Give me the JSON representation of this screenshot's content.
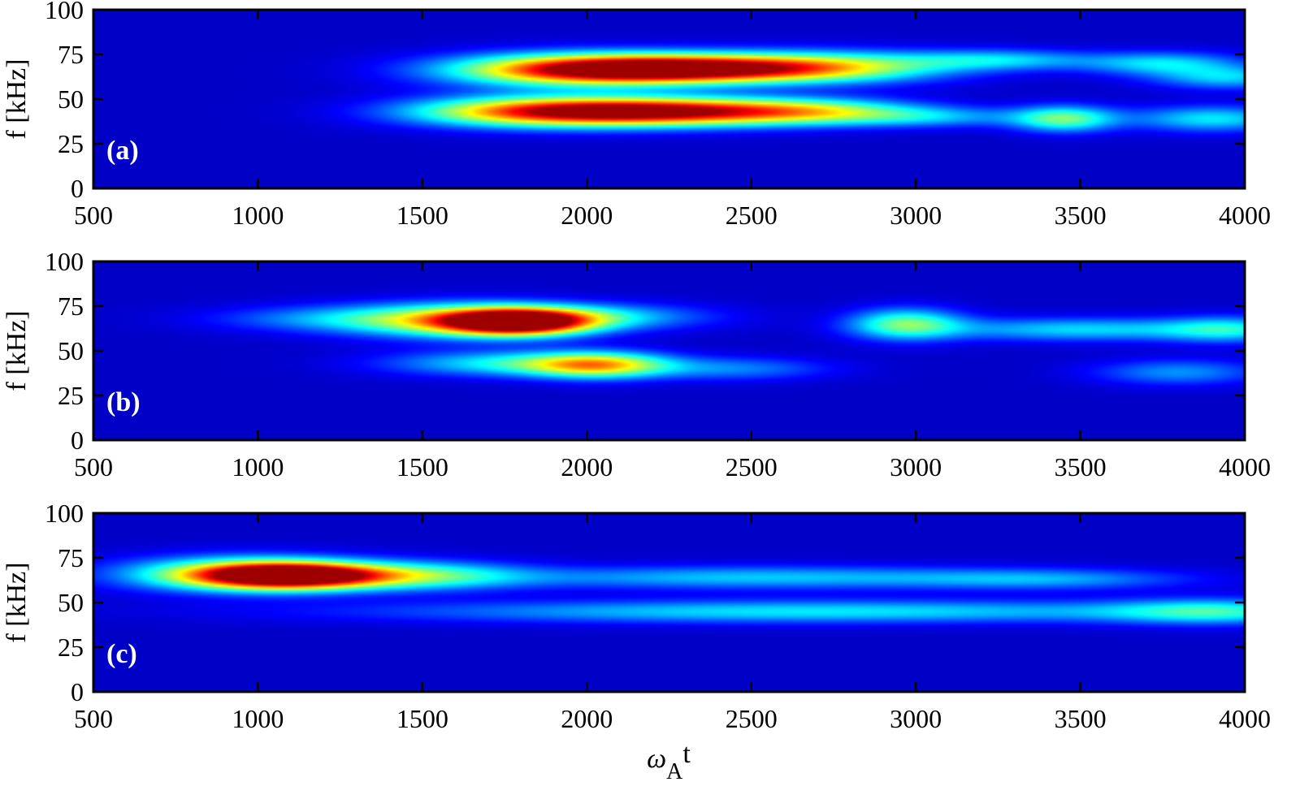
{
  "chart_data": [
    {
      "type": "heatmap",
      "panel_label": "(a)",
      "ylabel": "f [kHz]",
      "xlabel": "",
      "xlim": [
        500,
        4000
      ],
      "ylim": [
        0,
        100
      ],
      "xticks": [
        500,
        1000,
        1500,
        2000,
        2500,
        3000,
        3500,
        4000
      ],
      "yticks": [
        0,
        25,
        50,
        75,
        100
      ],
      "colormap": "jet",
      "background_color": "#00008f",
      "features": [
        {
          "x": 2280,
          "y": 67,
          "sx": 320,
          "sy": 5.5,
          "a": 1.0
        },
        {
          "x": 1950,
          "y": 66,
          "sx": 280,
          "sy": 6.5,
          "a": 0.55
        },
        {
          "x": 2750,
          "y": 68,
          "sx": 260,
          "sy": 6,
          "a": 0.42
        },
        {
          "x": 3250,
          "y": 72,
          "sx": 200,
          "sy": 4,
          "a": 0.28
        },
        {
          "x": 3750,
          "y": 70,
          "sx": 170,
          "sy": 4.5,
          "a": 0.3
        },
        {
          "x": 3950,
          "y": 62,
          "sx": 160,
          "sy": 4.5,
          "a": 0.28
        },
        {
          "x": 2200,
          "y": 43,
          "sx": 330,
          "sy": 5.5,
          "a": 1.0
        },
        {
          "x": 1800,
          "y": 43,
          "sx": 260,
          "sy": 6,
          "a": 0.45
        },
        {
          "x": 2700,
          "y": 43,
          "sx": 220,
          "sy": 5,
          "a": 0.36
        },
        {
          "x": 3450,
          "y": 39,
          "sx": 110,
          "sy": 5,
          "a": 0.45
        },
        {
          "x": 3900,
          "y": 39,
          "sx": 170,
          "sy": 5,
          "a": 0.32
        },
        {
          "x": 3050,
          "y": 40,
          "sx": 200,
          "sy": 4,
          "a": 0.22
        }
      ]
    },
    {
      "type": "heatmap",
      "panel_label": "(b)",
      "ylabel": "f [kHz]",
      "xlabel": "",
      "xlim": [
        500,
        4000
      ],
      "ylim": [
        0,
        100
      ],
      "xticks": [
        500,
        1000,
        1500,
        2000,
        2500,
        3000,
        3500,
        4000
      ],
      "yticks": [
        0,
        25,
        50,
        75,
        100
      ],
      "colormap": "jet",
      "background_color": "#00008f",
      "features": [
        {
          "x": 1790,
          "y": 66,
          "sx": 150,
          "sy": 5,
          "a": 1.0
        },
        {
          "x": 1600,
          "y": 67,
          "sx": 240,
          "sy": 6.5,
          "a": 0.55
        },
        {
          "x": 1200,
          "y": 68,
          "sx": 250,
          "sy": 5,
          "a": 0.18
        },
        {
          "x": 2000,
          "y": 69,
          "sx": 250,
          "sy": 5,
          "a": 0.3
        },
        {
          "x": 2970,
          "y": 65,
          "sx": 120,
          "sy": 6,
          "a": 0.45
        },
        {
          "x": 3500,
          "y": 62,
          "sx": 300,
          "sy": 4.5,
          "a": 0.3
        },
        {
          "x": 3950,
          "y": 62,
          "sx": 140,
          "sy": 5,
          "a": 0.3
        },
        {
          "x": 2030,
          "y": 42,
          "sx": 150,
          "sy": 5,
          "a": 0.6
        },
        {
          "x": 1750,
          "y": 43,
          "sx": 250,
          "sy": 5,
          "a": 0.32
        },
        {
          "x": 2450,
          "y": 40,
          "sx": 200,
          "sy": 4.5,
          "a": 0.2
        },
        {
          "x": 3800,
          "y": 38,
          "sx": 180,
          "sy": 5,
          "a": 0.22
        }
      ]
    },
    {
      "type": "heatmap",
      "panel_label": "(c)",
      "ylabel": "f [kHz]",
      "xlabel": "ωAt",
      "xlabel_main": "ω",
      "xlabel_sub": "A",
      "xlabel_tail": "t",
      "xlim": [
        500,
        4000
      ],
      "ylim": [
        0,
        100
      ],
      "xticks": [
        500,
        1000,
        1500,
        2000,
        2500,
        3000,
        3500,
        4000
      ],
      "yticks": [
        0,
        25,
        50,
        75,
        100
      ],
      "colormap": "jet",
      "background_color": "#00008f",
      "features": [
        {
          "x": 1100,
          "y": 65,
          "sx": 190,
          "sy": 5,
          "a": 1.0
        },
        {
          "x": 950,
          "y": 66,
          "sx": 250,
          "sy": 6.5,
          "a": 0.55
        },
        {
          "x": 1500,
          "y": 65,
          "sx": 220,
          "sy": 5.5,
          "a": 0.38
        },
        {
          "x": 2500,
          "y": 64,
          "sx": 550,
          "sy": 4.5,
          "a": 0.28
        },
        {
          "x": 3400,
          "y": 63,
          "sx": 300,
          "sy": 4,
          "a": 0.2
        },
        {
          "x": 2700,
          "y": 45,
          "sx": 900,
          "sy": 4.5,
          "a": 0.32
        },
        {
          "x": 3900,
          "y": 45,
          "sx": 220,
          "sy": 5,
          "a": 0.3
        }
      ]
    }
  ]
}
